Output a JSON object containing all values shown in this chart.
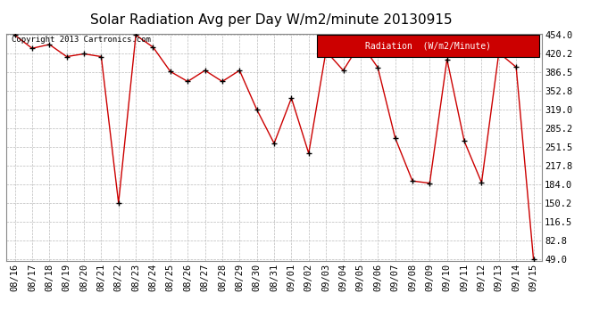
{
  "title": "Solar Radiation Avg per Day W/m2/minute 20130915",
  "copyright_text": "Copyright 2013 Cartronics.com",
  "legend_label": "Radiation  (W/m2/Minute)",
  "dates": [
    "08/16",
    "08/17",
    "08/18",
    "08/19",
    "08/20",
    "08/21",
    "08/22",
    "08/23",
    "08/24",
    "08/25",
    "08/26",
    "08/27",
    "08/28",
    "08/29",
    "08/30",
    "08/31",
    "09/01",
    "09/02",
    "09/03",
    "09/04",
    "09/05",
    "09/06",
    "09/07",
    "09/08",
    "09/09",
    "09/10",
    "09/11",
    "09/12",
    "09/13",
    "09/14",
    "09/15"
  ],
  "values": [
    454.0,
    430.0,
    437.0,
    415.0,
    420.0,
    415.0,
    150.2,
    454.0,
    432.0,
    388.0,
    370.0,
    390.0,
    370.0,
    390.0,
    319.0,
    258.0,
    340.0,
    240.0,
    425.0,
    390.0,
    440.0,
    395.0,
    268.0,
    190.0,
    186.0,
    410.0,
    262.0,
    187.0,
    422.0,
    396.0,
    49.0
  ],
  "ytick_values": [
    49.0,
    82.8,
    116.5,
    150.2,
    184.0,
    217.8,
    251.5,
    285.2,
    319.0,
    352.8,
    386.5,
    420.2,
    454.0
  ],
  "ymin": 49.0,
  "ymax": 454.0,
  "line_color": "#cc0000",
  "marker_color": "#000000",
  "background_color": "#ffffff",
  "grid_color": "#bbbbbb",
  "legend_bg": "#cc0000",
  "legend_text_color": "#ffffff",
  "title_fontsize": 11,
  "copyright_fontsize": 6.5,
  "tick_fontsize": 7.5,
  "legend_fontsize": 7.0
}
